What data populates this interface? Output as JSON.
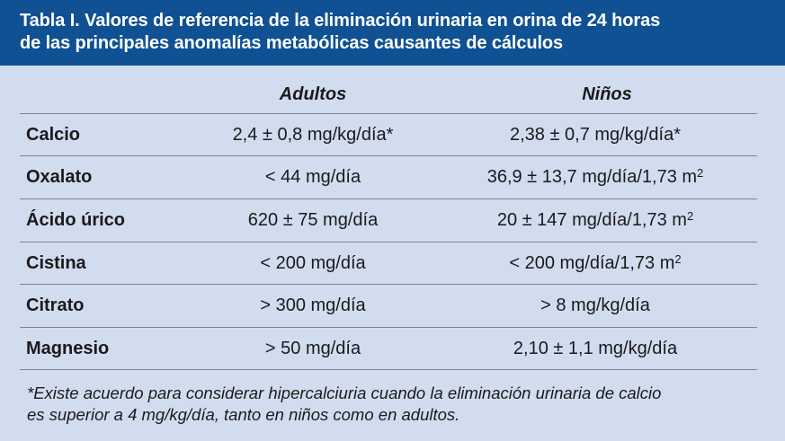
{
  "header": {
    "line1": "Tabla I.  Valores de referencia de la eliminación urinaria en orina de 24 horas",
    "line2": "de las principales anomalías metabólicas causantes de cálculos"
  },
  "columns": {
    "adults": "Adultos",
    "kids": "Niños"
  },
  "rows": [
    {
      "name": "Calcio",
      "adults": "2,4 ± 0,8 mg/kg/día*",
      "kids": "2,38 ± 0,7 mg/kg/día*",
      "kids_sup": ""
    },
    {
      "name": "Oxalato",
      "adults": "< 44 mg/día",
      "kids": "36,9 ± 13,7 mg/día/1,73 m",
      "kids_sup": "2"
    },
    {
      "name": "Ácido úrico",
      "adults": "620 ± 75 mg/día",
      "kids": "20 ± 147 mg/día/1,73 m",
      "kids_sup": "2"
    },
    {
      "name": "Cistina",
      "adults": "< 200 mg/día",
      "kids": "< 200 mg/día/1,73 m",
      "kids_sup": "2"
    },
    {
      "name": "Citrato",
      "adults": "> 300 mg/día",
      "kids": "> 8 mg/kg/día",
      "kids_sup": ""
    },
    {
      "name": "Magnesio",
      "adults": "> 50 mg/día",
      "kids": "2,10 ± 1,1 mg/kg/día",
      "kids_sup": ""
    }
  ],
  "footnote": {
    "line1": "*Existe acuerdo para considerar hipercalciuria cuando la eliminación urinaria de calcio",
    "line2": "es superior a 4 mg/kg/día, tanto en niños como en adultos."
  },
  "colors": {
    "header_bg": "#0f5193",
    "table_bg": "#d2dcef",
    "rule": "#7d8594"
  }
}
